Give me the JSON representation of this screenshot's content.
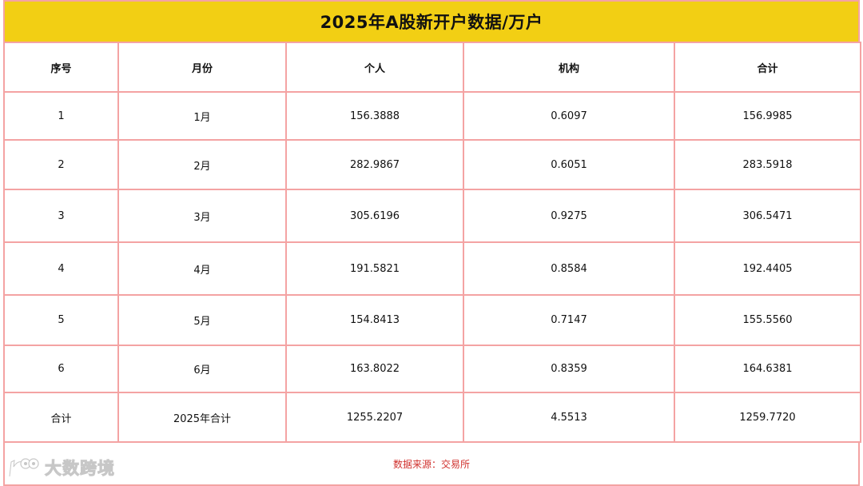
{
  "title": "2025年A股新开户数据/万户",
  "table": {
    "headers": [
      "序号",
      "月份",
      "个人",
      "机构",
      "合计"
    ],
    "rows": [
      [
        "1",
        "1月",
        "156.3888",
        "0.6097",
        "156.9985"
      ],
      [
        "2",
        "2月",
        "282.9867",
        "0.6051",
        "283.5918"
      ],
      [
        "3",
        "3月",
        "305.6196",
        "0.9275",
        "306.5471"
      ],
      [
        "4",
        "4月",
        "191.5821",
        "0.8584",
        "192.4405"
      ],
      [
        "5",
        "5月",
        "154.8413",
        "0.7147",
        "155.5560"
      ],
      [
        "6",
        "6月",
        "163.8022",
        "0.8359",
        "164.6381"
      ],
      [
        "合计",
        "2025年合计",
        "1255.2207",
        "4.5513",
        "1259.7720"
      ]
    ]
  },
  "source": "数据来源：交易所",
  "watermark": {
    "text": "大数跨境",
    "icon": "data-logo-icon"
  },
  "colors": {
    "title_bg": "#f2cf14",
    "grid_border": "#f4a3a3",
    "source_text": "#d0312d"
  }
}
